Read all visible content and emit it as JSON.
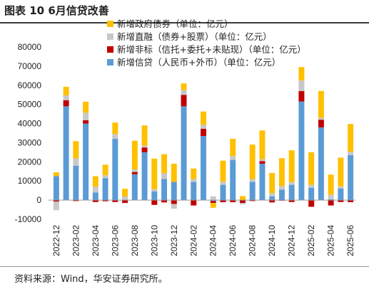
{
  "page": {
    "title": "图表 10  6月信贷改善",
    "source": "资料来源：Wind，华安证券研究所。"
  },
  "chart_data": {
    "type": "bar",
    "stacked": true,
    "ylim": [
      -10000,
      80000
    ],
    "yticks": [
      -10000,
      0,
      10000,
      20000,
      30000,
      40000,
      50000,
      60000,
      70000,
      80000
    ],
    "grid": false,
    "legend_position": "top-right",
    "x": [
      "2022-12",
      "2023-01",
      "2023-02",
      "2023-03",
      "2023-04",
      "2023-05",
      "2023-06",
      "2023-07",
      "2023-08",
      "2023-09",
      "2023-10",
      "2023-11",
      "2023-12",
      "2024-01",
      "2024-02",
      "2024-03",
      "2024-04",
      "2024-05",
      "2024-06",
      "2024-07",
      "2024-08",
      "2024-09",
      "2024-10",
      "2024-11",
      "2024-12",
      "2025-01",
      "2025-02",
      "2025-03",
      "2025-04",
      "2025-05",
      "2025-06"
    ],
    "x_tick_labels": [
      "2022-12",
      "2023-02",
      "2023-04",
      "2023-06",
      "2023-08",
      "2023-10",
      "2023-12",
      "2024-02",
      "2024-04",
      "2024-06",
      "2024-08",
      "2024-10",
      "2024-12",
      "2025-02",
      "2025-04",
      "2025-06"
    ],
    "series": [
      {
        "name": "新增信贷（人民币+外币）（单位：亿元）",
        "color": "#5b9bd5",
        "values": [
          12500,
          49000,
          18000,
          40000,
          4000,
          11500,
          32000,
          300,
          13500,
          25000,
          4500,
          11000,
          9500,
          49000,
          9500,
          33500,
          -500,
          8000,
          21000,
          100,
          9500,
          19000,
          2000,
          5500,
          8000,
          51500,
          6500,
          38000,
          500,
          6000,
          23500
        ]
      },
      {
        "name": "新增非标（信托+委托+未贴现）（单位：亿元）",
        "color": "#c00000",
        "values": [
          -800,
          3200,
          -500,
          1700,
          -1000,
          -600,
          -1000,
          -1500,
          1200,
          2500,
          -2500,
          -1200,
          -2000,
          6000,
          -2800,
          3800,
          -1000,
          -1100,
          -1100,
          -1500,
          -500,
          1400,
          -1200,
          -300,
          -1000,
          5500,
          -3500,
          4000,
          -2800,
          -1000,
          -1100
        ]
      },
      {
        "name": "新增直融（债券+股票）（单位：亿元）",
        "color": "#c8c8c8",
        "values": [
          -4500,
          2500,
          3800,
          4000,
          3000,
          1500,
          2500,
          1600,
          1300,
          1000,
          1200,
          3000,
          -2500,
          2500,
          1500,
          2000,
          2000,
          1600,
          2000,
          -800,
          1500,
          1000,
          1700,
          1900,
          1500,
          5500,
          1500,
          1000,
          2300,
          1200,
          1800
        ]
      },
      {
        "name": "新增政府债券（单位：亿元）",
        "color": "#ffc000",
        "values": [
          2000,
          4500,
          9000,
          5700,
          5500,
          5500,
          6000,
          4000,
          15000,
          10500,
          16000,
          10000,
          9500,
          3500,
          5500,
          7000,
          -2500,
          11000,
          9000,
          2000,
          18000,
          15000,
          10500,
          14500,
          16500,
          7000,
          17000,
          14000,
          10500,
          15000,
          14500
        ]
      }
    ]
  }
}
